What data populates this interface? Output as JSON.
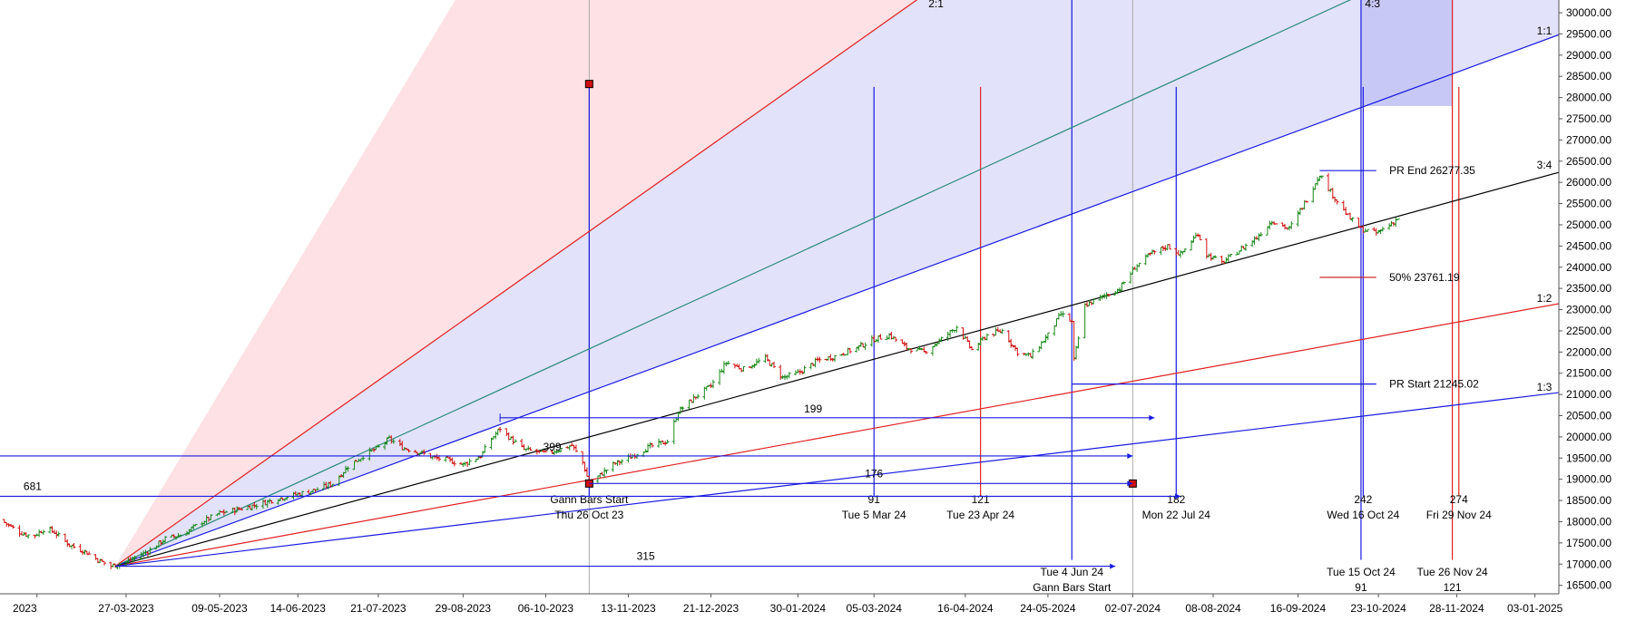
{
  "chart_data": {
    "type": "candlestick",
    "title": "",
    "xlabel": "",
    "ylabel": "",
    "ylim": [
      16300,
      30300
    ],
    "x_range_days": [
      "2023-01-28",
      "2025-01-14"
    ],
    "y_ticks": [
      "30000.00",
      "29500.00",
      "29000.00",
      "28500.00",
      "28000.00",
      "27500.00",
      "27000.00",
      "26500.00",
      "26000.00",
      "25500.00",
      "25000.00",
      "24500.00",
      "24000.00",
      "23500.00",
      "23000.00",
      "22500.00",
      "22000.00",
      "21500.00",
      "21000.00",
      "20500.00",
      "20000.00",
      "19500.00",
      "19000.00",
      "18500.00",
      "18000.00",
      "17500.00",
      "17000.00",
      "16500.00"
    ],
    "x_ticks": [
      {
        "date": "2023-02-14",
        "label": "2023"
      },
      {
        "date": "2023-03-27",
        "label": "27-03-2023"
      },
      {
        "date": "2023-05-09",
        "label": "09-05-2023"
      },
      {
        "date": "2023-06-14",
        "label": "14-06-2023"
      },
      {
        "date": "2023-07-21",
        "label": "21-07-2023"
      },
      {
        "date": "2023-08-29",
        "label": "29-08-2023"
      },
      {
        "date": "2023-10-06",
        "label": "06-10-2023"
      },
      {
        "date": "2023-11-13",
        "label": "13-11-2023"
      },
      {
        "date": "2023-12-21",
        "label": "21-12-2023"
      },
      {
        "date": "2024-01-30",
        "label": "30-01-2024"
      },
      {
        "date": "2024-03-05",
        "label": "05-03-2024"
      },
      {
        "date": "2024-04-16",
        "label": "16-04-2024"
      },
      {
        "date": "2024-05-24",
        "label": "24-05-2024"
      },
      {
        "date": "2024-07-02",
        "label": "02-07-2024"
      },
      {
        "date": "2024-08-08",
        "label": "08-08-2024"
      },
      {
        "date": "2024-09-16",
        "label": "16-09-2024"
      },
      {
        "date": "2024-10-23",
        "label": "23-10-2024"
      },
      {
        "date": "2024-11-28",
        "label": "28-11-2024"
      },
      {
        "date": "2025-01-03",
        "label": "03-01-2025"
      }
    ],
    "price_path": [
      [
        "2023-01-28",
        18050
      ],
      [
        "2023-02-06",
        17750
      ],
      [
        "2023-02-12",
        17650
      ],
      [
        "2023-02-18",
        17850
      ],
      [
        "2023-02-22",
        17750
      ],
      [
        "2023-03-01",
        17450
      ],
      [
        "2023-03-08",
        17300
      ],
      [
        "2023-03-14",
        17100
      ],
      [
        "2023-03-20",
        16950
      ],
      [
        "2023-03-27",
        17050
      ],
      [
        "2023-04-06",
        17300
      ],
      [
        "2023-04-14",
        17600
      ],
      [
        "2023-04-22",
        17700
      ],
      [
        "2023-05-01",
        18000
      ],
      [
        "2023-05-09",
        18200
      ],
      [
        "2023-05-18",
        18300
      ],
      [
        "2023-05-26",
        18400
      ],
      [
        "2023-06-05",
        18550
      ],
      [
        "2023-06-14",
        18650
      ],
      [
        "2023-06-22",
        18750
      ],
      [
        "2023-06-30",
        18900
      ],
      [
        "2023-07-07",
        19300
      ],
      [
        "2023-07-14",
        19550
      ],
      [
        "2023-07-21",
        19750
      ],
      [
        "2023-07-26",
        19950
      ],
      [
        "2023-08-01",
        19750
      ],
      [
        "2023-08-08",
        19650
      ],
      [
        "2023-08-16",
        19500
      ],
      [
        "2023-08-22",
        19450
      ],
      [
        "2023-08-29",
        19350
      ],
      [
        "2023-09-06",
        19550
      ],
      [
        "2023-09-11",
        19950
      ],
      [
        "2023-09-15",
        20200
      ],
      [
        "2023-09-20",
        19950
      ],
      [
        "2023-09-26",
        19700
      ],
      [
        "2023-10-02",
        19650
      ],
      [
        "2023-10-06",
        19600
      ],
      [
        "2023-10-12",
        19700
      ],
      [
        "2023-10-18",
        19800
      ],
      [
        "2023-10-23",
        19400
      ],
      [
        "2023-10-26",
        18900
      ],
      [
        "2023-10-31",
        19100
      ],
      [
        "2023-11-06",
        19350
      ],
      [
        "2023-11-13",
        19500
      ],
      [
        "2023-11-22",
        19750
      ],
      [
        "2023-12-01",
        19900
      ],
      [
        "2023-12-06",
        20600
      ],
      [
        "2023-12-14",
        20950
      ],
      [
        "2023-12-21",
        21200
      ],
      [
        "2023-12-28",
        21750
      ],
      [
        "2024-01-05",
        21600
      ],
      [
        "2024-01-15",
        21850
      ],
      [
        "2024-01-23",
        21400
      ],
      [
        "2024-01-30",
        21500
      ],
      [
        "2024-02-08",
        21800
      ],
      [
        "2024-02-16",
        21900
      ],
      [
        "2024-02-26",
        22100
      ],
      [
        "2024-03-05",
        22300
      ],
      [
        "2024-03-12",
        22400
      ],
      [
        "2024-03-20",
        22100
      ],
      [
        "2024-03-28",
        22000
      ],
      [
        "2024-04-05",
        22300
      ],
      [
        "2024-04-12",
        22600
      ],
      [
        "2024-04-19",
        22050
      ],
      [
        "2024-04-26",
        22400
      ],
      [
        "2024-05-03",
        22500
      ],
      [
        "2024-05-10",
        22000
      ],
      [
        "2024-05-16",
        21900
      ],
      [
        "2024-05-24",
        22400
      ],
      [
        "2024-05-30",
        22900
      ],
      [
        "2024-06-04",
        22700
      ],
      [
        "2024-06-05",
        21800
      ],
      [
        "2024-06-10",
        23100
      ],
      [
        "2024-06-18",
        23300
      ],
      [
        "2024-06-26",
        23500
      ],
      [
        "2024-07-03",
        24000
      ],
      [
        "2024-07-10",
        24300
      ],
      [
        "2024-07-18",
        24500
      ],
      [
        "2024-07-24",
        24300
      ],
      [
        "2024-08-01",
        24800
      ],
      [
        "2024-08-05",
        24300
      ],
      [
        "2024-08-12",
        24100
      ],
      [
        "2024-08-20",
        24400
      ],
      [
        "2024-08-28",
        24700
      ],
      [
        "2024-09-04",
        25100
      ],
      [
        "2024-09-12",
        24900
      ],
      [
        "2024-09-20",
        25600
      ],
      [
        "2024-09-26",
        26200
      ],
      [
        "2024-10-02",
        25700
      ],
      [
        "2024-10-09",
        25200
      ],
      [
        "2024-10-15",
        24900
      ],
      [
        "2024-10-22",
        24800
      ],
      [
        "2024-10-28",
        25000
      ],
      [
        "2024-11-01",
        25150
      ]
    ],
    "gann_fan": {
      "origin": [
        "2023-03-22",
        16950
      ],
      "lines": [
        {
          "label": "2:1",
          "end": [
            "2024-03-26",
            30350
          ],
          "color": "#e02020"
        },
        {
          "label": "4:3",
          "end": [
            "2024-10-12",
            30350
          ],
          "color": "#2a8a7a"
        },
        {
          "label": "1:1",
          "end": [
            "2025-01-15",
            29500
          ],
          "color": "#1a1ae0"
        },
        {
          "label": "3:4",
          "end": [
            "2025-01-15",
            26250
          ],
          "color": "#000000"
        },
        {
          "label": "1:2",
          "end": [
            "2025-01-15",
            23150
          ],
          "color": "#e02020"
        },
        {
          "label": "1:3",
          "end": [
            "2025-01-15",
            21050
          ],
          "color": "#1a1ae0"
        }
      ],
      "fill_red": [
        [
          "2023-03-22",
          16950
        ],
        [
          "2023-08-26",
          30350
        ],
        [
          "2024-03-26",
          30350
        ]
      ],
      "fill_blue": [
        [
          "2023-03-22",
          16950
        ],
        [
          "2024-03-26",
          30350
        ],
        [
          "2025-01-15",
          30350
        ],
        [
          "2025-01-15",
          29500
        ]
      ]
    },
    "shaded_zone": {
      "x0": "2024-10-15",
      "x1": "2024-11-26",
      "y0": 27800,
      "y1": 30350
    },
    "time_cycles": [
      {
        "date": "2023-10-26",
        "color": "#1a1ae0",
        "count": "",
        "label": "Thu 26 Oct 23",
        "extra": "Gann Bars Start"
      },
      {
        "date": "2024-03-05",
        "color": "#1a1ae0",
        "count": "91",
        "label": "Tue 5 Mar 24",
        "extra": ""
      },
      {
        "date": "2024-04-23",
        "color": "#e02020",
        "count": "121",
        "label": "Tue 23 Apr 24",
        "extra": ""
      },
      {
        "date": "2024-07-22",
        "color": "#1a1ae0",
        "count": "182",
        "label": "Mon 22 Jul 24",
        "extra": ""
      },
      {
        "date": "2024-10-16",
        "color": "#1a1ae0",
        "count": "242",
        "label": "Wed 16 Oct 24",
        "extra": ""
      },
      {
        "date": "2024-11-29",
        "color": "#e02020",
        "count": "274",
        "label": "Fri 29 Nov 24",
        "extra": ""
      }
    ],
    "time_cycles_2": [
      {
        "date": "2024-06-04",
        "label": "Tue 4 Jun 24",
        "extra": "Gann Bars Start",
        "count": ""
      },
      {
        "date": "2024-10-15",
        "label": "Tue 15 Oct 24",
        "extra": "",
        "count": "91"
      },
      {
        "date": "2024-11-26",
        "label": "Tue 26 Nov 24",
        "extra": "",
        "count": "121"
      }
    ],
    "bar_counts": [
      {
        "label": "681",
        "value": 681
      },
      {
        "label": "399",
        "value": 399
      },
      {
        "label": "199",
        "value": 199
      },
      {
        "label": "176",
        "value": 176
      },
      {
        "label": "315",
        "value": 315
      }
    ],
    "price_levels": [
      {
        "label": "PR End 26277.35",
        "price": 26277.35
      },
      {
        "label": "50% 23761.19",
        "price": 23761.19
      },
      {
        "label": "PR Start 21245.02",
        "price": 21245.02
      }
    ],
    "colors": {
      "up": "#1a8a1a",
      "down": "#d01010",
      "fan_blue": "#1a1ae0",
      "fan_red": "#e02020",
      "fill_red": "#fde1e4",
      "fill_blue": "#e2e2fa",
      "zone": "#c8c8f6"
    }
  }
}
